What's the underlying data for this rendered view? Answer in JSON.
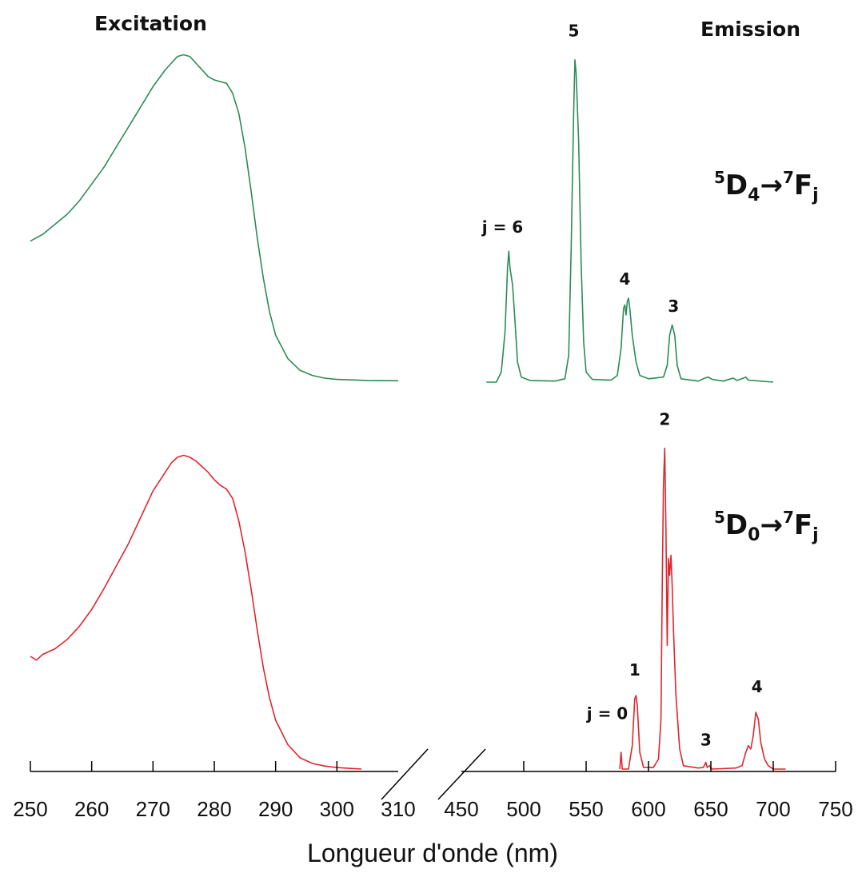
{
  "chart_data": {
    "type": "line",
    "xlabel": "Longueur d'onde (nm)",
    "x_axis": {
      "broken": true,
      "left_segment": {
        "range": [
          250,
          310
        ],
        "ticks": [
          250,
          260,
          270,
          280,
          290,
          300,
          310
        ]
      },
      "right_segment": {
        "range": [
          450,
          750
        ],
        "ticks": [
          450,
          500,
          550,
          600,
          650,
          700,
          750
        ]
      }
    },
    "headers": {
      "excitation": "Excitation",
      "emission": "Emission"
    },
    "panels": [
      {
        "name": "top",
        "color": "#2e8b57",
        "transition": {
          "upper_sup": "5",
          "upper": "D",
          "upper_sub": "4",
          "arrow": "→",
          "lower_sup": "7",
          "lower": "F",
          "lower_sub": "j"
        },
        "excitation": [
          [
            250,
            0.42
          ],
          [
            252,
            0.44
          ],
          [
            254,
            0.47
          ],
          [
            256,
            0.5
          ],
          [
            258,
            0.54
          ],
          [
            260,
            0.59
          ],
          [
            262,
            0.64
          ],
          [
            264,
            0.7
          ],
          [
            266,
            0.76
          ],
          [
            268,
            0.82
          ],
          [
            270,
            0.88
          ],
          [
            272,
            0.93
          ],
          [
            273,
            0.95
          ],
          [
            274,
            0.97
          ],
          [
            275,
            0.975
          ],
          [
            276,
            0.97
          ],
          [
            277,
            0.95
          ],
          [
            278,
            0.93
          ],
          [
            279,
            0.91
          ],
          [
            280,
            0.9
          ],
          [
            281,
            0.895
          ],
          [
            282,
            0.89
          ],
          [
            283,
            0.86
          ],
          [
            284,
            0.8
          ],
          [
            285,
            0.7
          ],
          [
            286,
            0.57
          ],
          [
            287,
            0.43
          ],
          [
            288,
            0.31
          ],
          [
            289,
            0.21
          ],
          [
            290,
            0.14
          ],
          [
            292,
            0.07
          ],
          [
            294,
            0.035
          ],
          [
            296,
            0.02
          ],
          [
            298,
            0.012
          ],
          [
            300,
            0.008
          ],
          [
            305,
            0.005
          ],
          [
            310,
            0.004
          ]
        ],
        "emission": [
          [
            470,
            0.0
          ],
          [
            478,
            0.0
          ],
          [
            482,
            0.03
          ],
          [
            485,
            0.15
          ],
          [
            487,
            0.34
          ],
          [
            488,
            0.39
          ],
          [
            489,
            0.34
          ],
          [
            491,
            0.29
          ],
          [
            493,
            0.18
          ],
          [
            495,
            0.06
          ],
          [
            498,
            0.015
          ],
          [
            505,
            0.005
          ],
          [
            525,
            0.003
          ],
          [
            533,
            0.01
          ],
          [
            536,
            0.08
          ],
          [
            538,
            0.4
          ],
          [
            540,
            0.8
          ],
          [
            541,
            0.96
          ],
          [
            542,
            0.92
          ],
          [
            544,
            0.72
          ],
          [
            546,
            0.35
          ],
          [
            548,
            0.12
          ],
          [
            550,
            0.03
          ],
          [
            555,
            0.008
          ],
          [
            570,
            0.006
          ],
          [
            575,
            0.02
          ],
          [
            578,
            0.1
          ],
          [
            580,
            0.22
          ],
          [
            581,
            0.23
          ],
          [
            582,
            0.2
          ],
          [
            583,
            0.24
          ],
          [
            584,
            0.25
          ],
          [
            585,
            0.22
          ],
          [
            587,
            0.14
          ],
          [
            590,
            0.06
          ],
          [
            593,
            0.02
          ],
          [
            600,
            0.01
          ],
          [
            612,
            0.015
          ],
          [
            615,
            0.05
          ],
          [
            617,
            0.14
          ],
          [
            619,
            0.17
          ],
          [
            621,
            0.14
          ],
          [
            623,
            0.05
          ],
          [
            626,
            0.01
          ],
          [
            640,
            0.003
          ],
          [
            645,
            0.012
          ],
          [
            648,
            0.015
          ],
          [
            651,
            0.008
          ],
          [
            660,
            0.003
          ],
          [
            666,
            0.01
          ],
          [
            668,
            0.012
          ],
          [
            671,
            0.005
          ],
          [
            676,
            0.012
          ],
          [
            678,
            0.015
          ],
          [
            680,
            0.006
          ],
          [
            690,
            0.003
          ],
          [
            700,
            0.0
          ]
        ],
        "peak_labels": [
          {
            "text": "j = 6",
            "x": 483,
            "y": 0.445
          },
          {
            "text": "5",
            "x": 540,
            "y": 1.03
          },
          {
            "text": "4",
            "x": 581,
            "y": 0.29
          },
          {
            "text": "3",
            "x": 620,
            "y": 0.21
          }
        ]
      },
      {
        "name": "bottom",
        "color": "#e0262e",
        "transition": {
          "upper_sup": "5",
          "upper": "D",
          "upper_sub": "0",
          "arrow": "→",
          "lower_sup": "7",
          "lower": "F",
          "lower_sub": "j"
        },
        "excitation": [
          [
            250,
            0.3
          ],
          [
            251,
            0.29
          ],
          [
            252,
            0.305
          ],
          [
            254,
            0.32
          ],
          [
            256,
            0.345
          ],
          [
            258,
            0.38
          ],
          [
            260,
            0.425
          ],
          [
            262,
            0.48
          ],
          [
            264,
            0.54
          ],
          [
            266,
            0.6
          ],
          [
            268,
            0.67
          ],
          [
            270,
            0.74
          ],
          [
            272,
            0.79
          ],
          [
            273,
            0.815
          ],
          [
            274,
            0.83
          ],
          [
            275,
            0.835
          ],
          [
            276,
            0.83
          ],
          [
            277,
            0.82
          ],
          [
            278,
            0.805
          ],
          [
            279,
            0.79
          ],
          [
            280,
            0.77
          ],
          [
            281,
            0.755
          ],
          [
            282,
            0.745
          ],
          [
            283,
            0.72
          ],
          [
            284,
            0.66
          ],
          [
            285,
            0.58
          ],
          [
            286,
            0.48
          ],
          [
            287,
            0.37
          ],
          [
            288,
            0.27
          ],
          [
            289,
            0.19
          ],
          [
            290,
            0.13
          ],
          [
            292,
            0.065
          ],
          [
            294,
            0.03
          ],
          [
            296,
            0.015
          ],
          [
            298,
            0.008
          ],
          [
            300,
            0.004
          ],
          [
            302,
            0.002
          ],
          [
            304,
            0.0
          ]
        ],
        "emission": [
          [
            577,
            0.0
          ],
          [
            578,
            0.05
          ],
          [
            579,
            0.0
          ],
          [
            584,
            0.0
          ],
          [
            587,
            0.07
          ],
          [
            589,
            0.21
          ],
          [
            590,
            0.22
          ],
          [
            591,
            0.19
          ],
          [
            593,
            0.05
          ],
          [
            596,
            0.005
          ],
          [
            604,
            0.005
          ],
          [
            608,
            0.03
          ],
          [
            610,
            0.15
          ],
          [
            611,
            0.55
          ],
          [
            612,
            0.85
          ],
          [
            613,
            0.96
          ],
          [
            614,
            0.72
          ],
          [
            615,
            0.37
          ],
          [
            616,
            0.63
          ],
          [
            617,
            0.58
          ],
          [
            618,
            0.64
          ],
          [
            619,
            0.55
          ],
          [
            620,
            0.42
          ],
          [
            622,
            0.22
          ],
          [
            625,
            0.06
          ],
          [
            628,
            0.01
          ],
          [
            640,
            0.003
          ],
          [
            644,
            0.005
          ],
          [
            646,
            0.02
          ],
          [
            647,
            0.005
          ],
          [
            649,
            0.01
          ],
          [
            651,
            0.0
          ],
          [
            670,
            0.003
          ],
          [
            675,
            0.01
          ],
          [
            678,
            0.05
          ],
          [
            680,
            0.07
          ],
          [
            682,
            0.06
          ],
          [
            684,
            0.1
          ],
          [
            686,
            0.17
          ],
          [
            688,
            0.15
          ],
          [
            690,
            0.08
          ],
          [
            693,
            0.03
          ],
          [
            696,
            0.01
          ],
          [
            700,
            0.0
          ],
          [
            710,
            0.0
          ]
        ],
        "peak_labels": [
          {
            "text": "j = 0",
            "x": 567,
            "y": 0.15
          },
          {
            "text": "1",
            "x": 589,
            "y": 0.28
          },
          {
            "text": "2",
            "x": 613,
            "y": 1.03
          },
          {
            "text": "3",
            "x": 646,
            "y": 0.07
          },
          {
            "text": "4",
            "x": 687,
            "y": 0.23
          }
        ]
      }
    ]
  }
}
